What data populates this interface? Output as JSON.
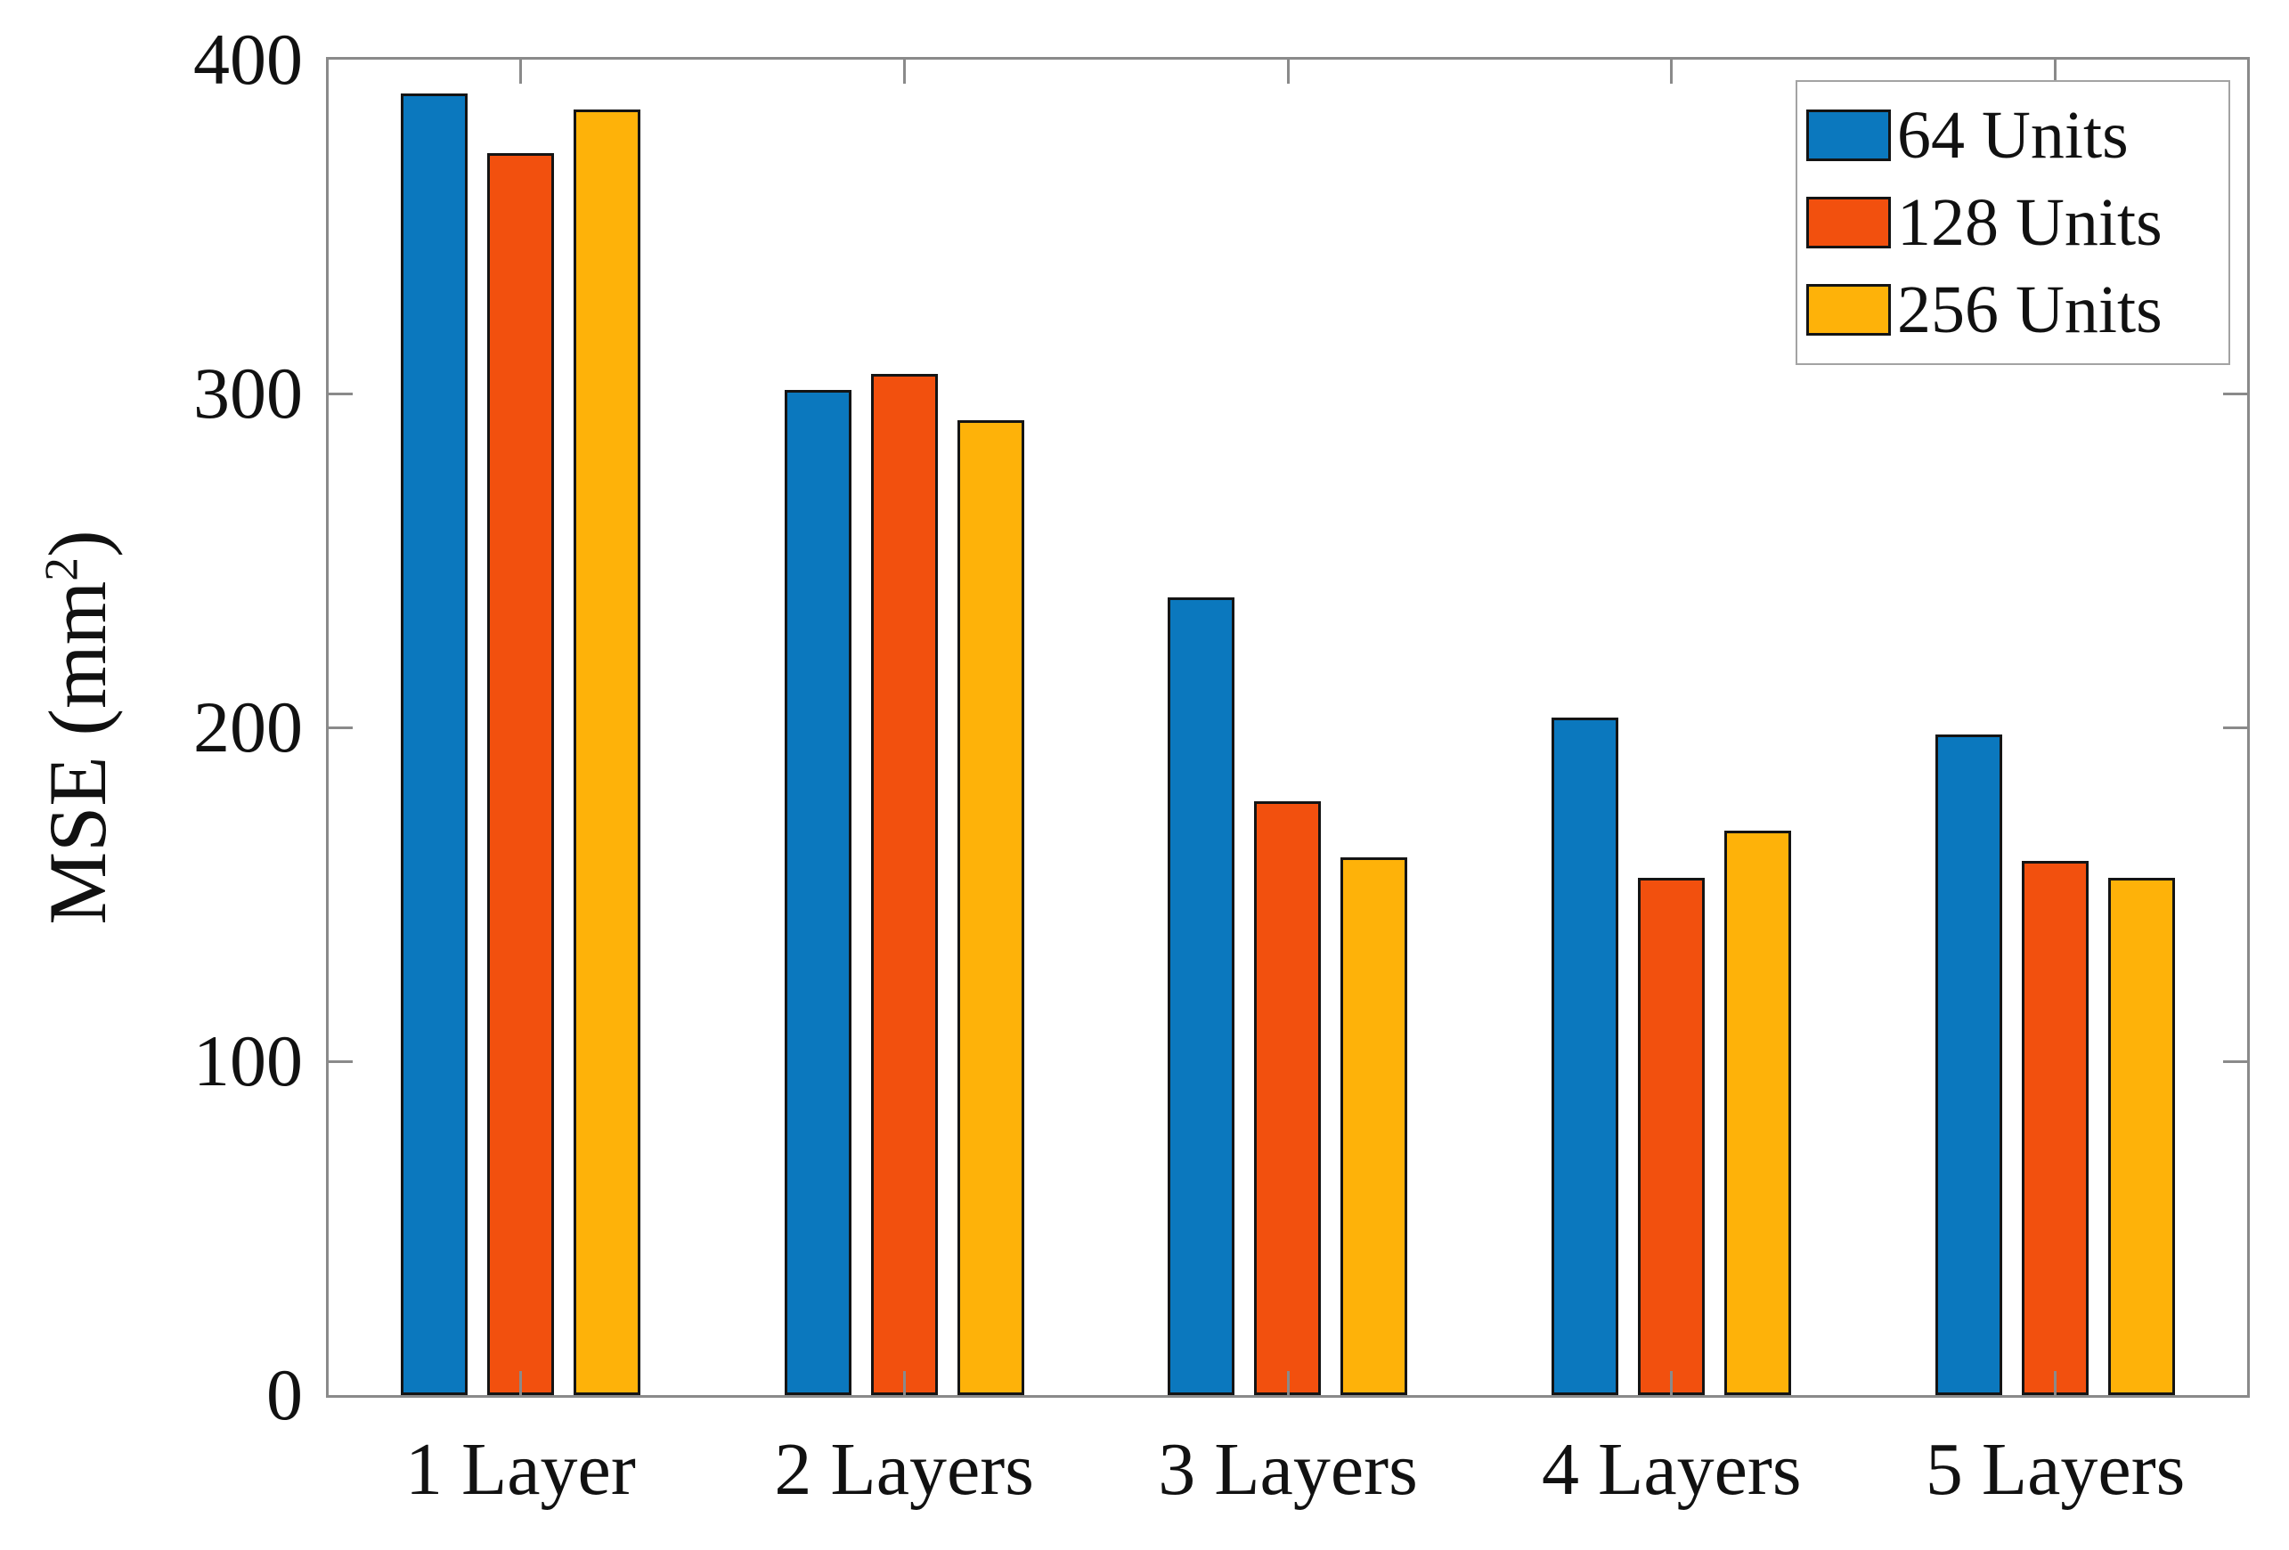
{
  "chart_data": {
    "type": "bar",
    "title": "",
    "categories": [
      "1 Layer",
      "2 Layers",
      "3 Layers",
      "4 Layers",
      "5 Layers"
    ],
    "series": [
      {
        "name": "64 Units",
        "color": "#0b78be",
        "values": [
          390,
          301,
          239,
          203,
          198
        ]
      },
      {
        "name": "128 Units",
        "color": "#f2500e",
        "values": [
          372,
          306,
          178,
          155,
          160
        ]
      },
      {
        "name": "256 Units",
        "color": "#feb209",
        "values": [
          385,
          292,
          161,
          169,
          155
        ]
      }
    ],
    "xlabel": "",
    "ylabel_text": "MSE (mm",
    "ylabel_sup": "2",
    "ylabel_close": ")",
    "ylim": [
      0,
      400
    ],
    "yticks": [
      0,
      100,
      200,
      300,
      400
    ],
    "grid": false,
    "legend_position": "northeast",
    "bar_edge_color": "#000000",
    "axis_color": "#8a8a8a"
  }
}
